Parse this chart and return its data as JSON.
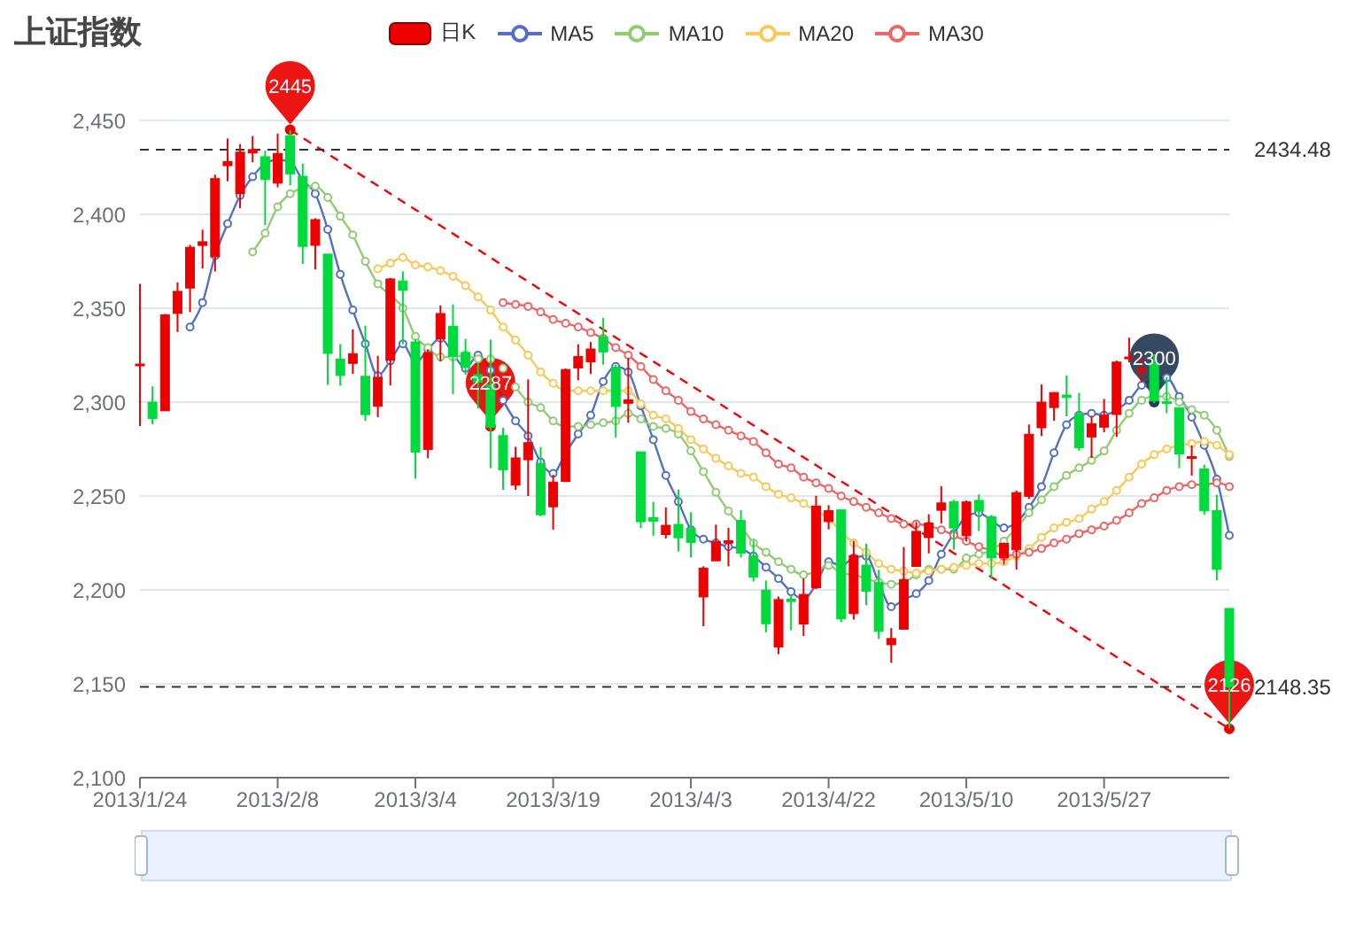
{
  "chart_data": {
    "type": "candlestick",
    "title": "上证指数",
    "categories": [
      "2013/1/24",
      null,
      null,
      null,
      null,
      null,
      null,
      null,
      null,
      null,
      null,
      "2013/2/8",
      null,
      null,
      null,
      null,
      null,
      null,
      null,
      null,
      null,
      null,
      "2013/3/4",
      null,
      null,
      null,
      null,
      null,
      null,
      null,
      null,
      null,
      null,
      "2013/3/19",
      null,
      null,
      null,
      null,
      null,
      null,
      null,
      null,
      null,
      null,
      "2013/4/3",
      null,
      null,
      null,
      null,
      null,
      null,
      null,
      null,
      null,
      null,
      "2013/4/22",
      null,
      null,
      null,
      null,
      null,
      null,
      null,
      null,
      null,
      null,
      "2013/5/10",
      null,
      null,
      null,
      null,
      null,
      null,
      null,
      null,
      null,
      null,
      "2013/5/27",
      null,
      null,
      null,
      null,
      null,
      null,
      null,
      null,
      null,
      null
    ],
    "series": [
      {
        "name": "日K",
        "type": "candlestick",
        "color": "#ec0000",
        "colors": [
          "#ec0000",
          "#00da3c",
          "#ec0000",
          "#ec0000",
          "#ec0000",
          "#ec0000",
          "#ec0000",
          "#ec0000",
          "#ec0000",
          "#ec0000",
          "#00da3c",
          "#ec0000",
          "#00da3c",
          "#00da3c",
          "#ec0000",
          "#00da3c",
          "#00da3c",
          "#ec0000",
          "#00da3c",
          "#ec0000",
          "#ec0000",
          "#00da3c",
          "#00da3c",
          "#ec0000",
          "#ec0000",
          "#00da3c",
          "#00da3c",
          "#00da3c",
          "#00da3c",
          "#00da3c",
          "#ec0000",
          "#ec0000",
          "#00da3c",
          "#ec0000",
          "#ec0000",
          "#ec0000",
          "#ec0000",
          "#00da3c",
          "#00da3c",
          "#ec0000",
          "#00da3c",
          "#00da3c",
          "#ec0000",
          "#00da3c",
          "#00da3c",
          "#ec0000",
          "#ec0000",
          "#ec0000",
          "#00da3c",
          "#00da3c",
          "#00da3c",
          "#ec0000",
          "#00da3c",
          "#ec0000",
          "#ec0000",
          "#ec0000",
          "#00da3c",
          "#ec0000",
          "#00da3c",
          "#00da3c",
          "#ec0000",
          "#ec0000",
          "#ec0000",
          "#ec0000",
          "#ec0000",
          "#00da3c",
          "#ec0000",
          "#00da3c",
          "#00da3c",
          "#ec0000",
          "#ec0000",
          "#ec0000",
          "#ec0000",
          "#ec0000",
          "#00da3c",
          "#00da3c",
          "#ec0000",
          "#ec0000",
          "#ec0000",
          "#ec0000",
          "#ec0000",
          "#00da3c",
          "#00da3c",
          "#00da3c",
          "#ec0000",
          "#00da3c",
          "#00da3c",
          "#00da3c"
        ],
        "ohlc": [
          [
            2320.26,
            2362.94,
            2287.3,
            2320.26
          ],
          [
            2300,
            2308.38,
            2288.26,
            2291.3
          ],
          [
            2295.35,
            2346.92,
            2295.35,
            2346.5
          ],
          [
            2347.22,
            2363.8,
            2337.35,
            2358.98
          ],
          [
            2360.75,
            2383.76,
            2347.89,
            2382.48
          ],
          [
            2383.43,
            2391.82,
            2371.23,
            2385.42
          ],
          [
            2377.41,
            2421.15,
            2369.57,
            2419.02
          ],
          [
            2425.92,
            2440.38,
            2417.58,
            2428.15
          ],
          [
            2411,
            2437.42,
            2403.3,
            2433.13
          ],
          [
            2432.68,
            2441.73,
            2427.7,
            2434.48
          ],
          [
            2430.69,
            2433.89,
            2394.22,
            2418.53
          ],
          [
            2416.62,
            2443.03,
            2414.4,
            2432.4
          ],
          [
            2441.91,
            2444.8,
            2415.43,
            2421.56
          ],
          [
            2420.26,
            2427.07,
            2373.53,
            2382.91
          ],
          [
            2383.49,
            2397.94,
            2370.61,
            2397.18
          ],
          [
            2378.82,
            2378.82,
            2309.17,
            2325.95
          ],
          [
            2322.94,
            2330.88,
            2308.76,
            2314.16
          ],
          [
            2320.62,
            2338.78,
            2315.01,
            2325.82
          ],
          [
            2313.74,
            2340.71,
            2289.89,
            2293.34
          ],
          [
            2297.77,
            2324.63,
            2292.03,
            2313.22
          ],
          [
            2322.32,
            2366.16,
            2308.92,
            2365.59
          ],
          [
            2364.54,
            2369.65,
            2330.86,
            2359.51
          ],
          [
            2332.08,
            2333.54,
            2259.25,
            2273.4
          ],
          [
            2274.81,
            2328.14,
            2270.1,
            2326.31
          ],
          [
            2333.61,
            2351.44,
            2321.6,
            2347.18
          ],
          [
            2340.44,
            2352.02,
            2304.27,
            2324.29
          ],
          [
            2326.42,
            2333.67,
            2314.59,
            2318.61
          ],
          [
            2314.68,
            2320.96,
            2296.58,
            2310.59
          ],
          [
            2309.16,
            2333.29,
            2264.83,
            2286.6
          ],
          [
            2282.17,
            2286.33,
            2253.25,
            2263.97
          ],
          [
            2255.77,
            2276.22,
            2253.31,
            2270.28
          ],
          [
            2269.31,
            2312.08,
            2250,
            2278.4
          ],
          [
            2267.29,
            2276.05,
            2239.21,
            2240.02
          ],
          [
            2244.26,
            2261.31,
            2232.02,
            2257.43
          ],
          [
            2257.74,
            2317.86,
            2257.42,
            2317.37
          ],
          [
            2318.21,
            2330.81,
            2311.6,
            2324.24
          ],
          [
            2321.4,
            2332,
            2314.97,
            2328.28
          ],
          [
            2334.74,
            2344.89,
            2319.91,
            2326.72
          ],
          [
            2318.58,
            2319.99,
            2281.12,
            2297.67
          ],
          [
            2299.38,
            2323.48,
            2289,
            2301.26
          ],
          [
            2273.55,
            2273.55,
            2232.91,
            2236.3
          ],
          [
            2238.49,
            2246.87,
            2228.81,
            2236.62
          ],
          [
            2229.46,
            2243.95,
            2227.31,
            2234.4
          ],
          [
            2234.9,
            2253.42,
            2220.44,
            2227.74
          ],
          [
            2232.69,
            2241.34,
            2217.25,
            2225.29
          ],
          [
            2196.24,
            2212.59,
            2180.67,
            2211.59
          ],
          [
            2215.47,
            2234.73,
            2215.47,
            2225.77
          ],
          [
            2224.93,
            2233.04,
            2212.56,
            2226.13
          ],
          [
            2236.98,
            2242.48,
            2217.26,
            2219.55
          ],
          [
            2218.09,
            2226.26,
            2204.44,
            2206.78
          ],
          [
            2199.91,
            2204.99,
            2177.39,
            2181.94
          ],
          [
            2169.63,
            2196.43,
            2165.78,
            2194.85
          ],
          [
            2195.03,
            2197.51,
            2178.47,
            2193.8
          ],
          [
            2181.82,
            2206.03,
            2175.44,
            2197.6
          ],
          [
            2201.12,
            2250.11,
            2200.58,
            2244.64
          ],
          [
            2236.4,
            2245.12,
            2232.26,
            2242.17
          ],
          [
            2242.62,
            2242.62,
            2182.81,
            2184.54
          ],
          [
            2187.35,
            2226.12,
            2184.11,
            2218.32
          ],
          [
            2213.19,
            2224.63,
            2191.85,
            2199.31
          ],
          [
            2203.89,
            2210.58,
            2173.86,
            2177.91
          ],
          [
            2170.78,
            2179.65,
            2161.14,
            2174.12
          ],
          [
            2179.05,
            2222.81,
            2179.05,
            2205.5
          ],
          [
            2212.5,
            2236.07,
            2212.5,
            2231.17
          ],
          [
            2227.86,
            2240.26,
            2219.44,
            2235.57
          ],
          [
            2242.39,
            2255.21,
            2235.42,
            2246.3
          ],
          [
            2246.96,
            2247.86,
            2221.38,
            2232.97
          ],
          [
            2228.82,
            2247.67,
            2225.81,
            2246.83
          ],
          [
            2247.68,
            2250.85,
            2231.36,
            2241.92
          ],
          [
            2238.9,
            2239.93,
            2205.87,
            2217.01
          ],
          [
            2217.09,
            2225.19,
            2213.58,
            2224.8
          ],
          [
            2221.34,
            2252.87,
            2210.77,
            2251.81
          ],
          [
            2249.81,
            2288.09,
            2248.41,
            2282.87
          ],
          [
            2286.33,
            2309.39,
            2281.9,
            2299.99
          ],
          [
            2297.11,
            2305.3,
            2290.12,
            2305.11
          ],
          [
            2303.75,
            2314.18,
            2292.43,
            2302.4
          ],
          [
            2293.81,
            2304.95,
            2274.1,
            2275.67
          ],
          [
            2281.45,
            2292.59,
            2270.25,
            2288.53
          ],
          [
            2286.66,
            2301.7,
            2283.94,
            2293.08
          ],
          [
            2293.4,
            2322.1,
            2281.47,
            2321.32
          ],
          [
            2323.54,
            2334.33,
            2321.17,
            2324.02
          ],
          [
            2316.25,
            2325.72,
            2310.49,
            2317.75
          ],
          [
            2320.74,
            2325.53,
            2299.37,
            2300.59
          ],
          [
            2300.21,
            2313.43,
            2294.11,
            2299.25
          ],
          [
            2297.1,
            2297.1,
            2264.76,
            2272.42
          ],
          [
            2270.71,
            2276.86,
            2260.87,
            2270.93
          ],
          [
            2264.43,
            2266.69,
            2240.07,
            2242.11
          ],
          [
            2242.26,
            2250.63,
            2205.07,
            2210.9
          ],
          [
            2190.1,
            2190.1,
            2126.22,
            2148.35
          ]
        ]
      },
      {
        "name": "MA5",
        "type": "line",
        "color": "#5470c6",
        "marker": "circle",
        "line_style": "solid",
        "values": [
          null,
          null,
          null,
          null,
          2340,
          2353,
          2378,
          2395,
          2410,
          2420,
          2427,
          2429,
          2428,
          2418,
          2411,
          2392,
          2368,
          2349,
          2331,
          2314,
          2322,
          2331,
          2321,
          2328,
          2334,
          2326,
          2318,
          2325,
          2317,
          2301,
          2290,
          2282,
          2268,
          2262,
          2273,
          2283,
          2293,
          2311,
          2319,
          2316,
          2298,
          2280,
          2261,
          2247,
          2232,
          2227,
          2225,
          2223,
          2222,
          2218,
          2212,
          2206,
          2199,
          2195,
          2203,
          2215,
          2213,
          2217,
          2218,
          2204,
          2191,
          2195,
          2198,
          2205,
          2219,
          2230,
          2239,
          2241,
          2237,
          2233,
          2236,
          2244,
          2255,
          2273,
          2288,
          2293,
          2294,
          2293,
          2296,
          2301,
          2309,
          null,
          2313,
          2303,
          2292,
          2277,
          2259,
          2229
        ]
      },
      {
        "name": "MA10",
        "type": "line",
        "color": "#91cc75",
        "marker": "circle",
        "line_style": "solid",
        "values": [
          null,
          null,
          null,
          null,
          null,
          null,
          null,
          null,
          null,
          2380,
          2390,
          2404,
          2411,
          2414,
          2415,
          2409,
          2399,
          2389,
          2375,
          2363,
          2357,
          2350,
          2335,
          2329,
          2324,
          2324,
          2325,
          2323,
          2323,
          2318,
          2308,
          2300,
          2297,
          2290,
          2287,
          2287,
          2288,
          2289,
          2290,
          2294,
          2291,
          2287,
          2286,
          2283,
          2274,
          2263,
          2252,
          2242,
          2234,
          2225,
          2220,
          2215,
          2211,
          2208,
          2210,
          2213,
          2209,
          2208,
          2206,
          2204,
          2203,
          2204,
          2208,
          2211,
          2211,
          2211,
          2217,
          2219,
          2221,
          2226,
          2233,
          2241,
          2248,
          2255,
          2261,
          2265,
          2269,
          2274,
          2285,
          2294,
          2301,
          2303,
          2303,
          2300,
          2296,
          2293,
          2285,
          2271
        ]
      },
      {
        "name": "MA20",
        "type": "line",
        "color": "#fac858",
        "marker": "circle",
        "line_style": "solid",
        "values": [
          null,
          null,
          null,
          null,
          null,
          null,
          null,
          null,
          null,
          null,
          null,
          null,
          null,
          null,
          null,
          null,
          null,
          null,
          null,
          2371,
          2374,
          2377,
          2373,
          2372,
          2370,
          2367,
          2362,
          2356,
          2349,
          2340,
          2333,
          2325,
          2316,
          2310,
          2306,
          2306,
          2306,
          2306,
          2306,
          2306,
          2299,
          2293,
          2291,
          2286,
          2280,
          2275,
          2270,
          2266,
          2262,
          2260,
          2255,
          2251,
          2249,
          2246,
          2242,
          2238,
          2231,
          2225,
          2220,
          2214,
          2211,
          2210,
          2209,
          2210,
          2211,
          2212,
          2213,
          2214,
          2214,
          2215,
          2218,
          2222,
          2228,
          2233,
          2236,
          2238,
          2243,
          2247,
          2253,
          2260,
          2267,
          2272,
          2275,
          2277,
          2278,
          2279,
          2277,
          2272
        ]
      },
      {
        "name": "MA30",
        "type": "line",
        "color": "#ee6666",
        "marker": "circle",
        "line_style": "solid",
        "values": [
          null,
          null,
          null,
          null,
          null,
          null,
          null,
          null,
          null,
          null,
          null,
          null,
          null,
          null,
          null,
          null,
          null,
          null,
          null,
          null,
          null,
          null,
          null,
          null,
          null,
          null,
          null,
          null,
          null,
          2353,
          2352,
          2351,
          2348,
          2344,
          2342,
          2340,
          2337,
          2334,
          2329,
          2325,
          2319,
          2312,
          2306,
          2301,
          2295,
          2291,
          2288,
          2285,
          2282,
          2279,
          2273,
          2267,
          2265,
          2260,
          2257,
          2254,
          2250,
          2247,
          2244,
          2241,
          2238,
          2235,
          2235,
          2234,
          2232,
          2229,
          2226,
          2223,
          2221,
          2218,
          2219,
          2220,
          2222,
          2225,
          2227,
          2230,
          2232,
          2234,
          2237,
          2241,
          2246,
          2249,
          2253,
          2255,
          2256,
          2256,
          2257,
          2255
        ]
      },
      {
        "type": "line",
        "color": "#ff0000",
        "line_style": "dashed",
        "values": [
          null,
          null,
          null,
          null,
          null,
          null,
          null,
          null,
          null,
          null,
          null,
          null,
          2445,
          null,
          null,
          null,
          null,
          null,
          null,
          null,
          null,
          null,
          null,
          null,
          null,
          null,
          null,
          null,
          null,
          null,
          null,
          null,
          null,
          null,
          null,
          null,
          null,
          null,
          null,
          null,
          null,
          null,
          null,
          null,
          null,
          null,
          null,
          null,
          null,
          null,
          null,
          null,
          null,
          null,
          null,
          null,
          null,
          null,
          null,
          null,
          null,
          null,
          null,
          null,
          null,
          null,
          null,
          null,
          null,
          null,
          null,
          null,
          null,
          null,
          null,
          null,
          null,
          null,
          null,
          null,
          null,
          null,
          null,
          null,
          null,
          null,
          null,
          2126
        ]
      },
      {
        "type": "scatter",
        "values": [
          null,
          null,
          null,
          null,
          null,
          null,
          null,
          null,
          null,
          null,
          null,
          null,
          2445,
          null,
          null,
          null,
          null,
          null,
          null,
          null,
          null,
          null,
          null,
          null,
          null,
          null,
          null,
          null,
          2287,
          null,
          null,
          null,
          null,
          null,
          null,
          null,
          null,
          null,
          null,
          null,
          null,
          null,
          null,
          null,
          null,
          null,
          null,
          null,
          null,
          null,
          null,
          null,
          null,
          null,
          null,
          null,
          null,
          null,
          null,
          null,
          null,
          null,
          null,
          null,
          null,
          null,
          null,
          null,
          null,
          null,
          null,
          null,
          null,
          null,
          null,
          null,
          null,
          null,
          null,
          null,
          null,
          2300,
          null,
          null,
          null,
          null,
          null,
          2126
        ],
        "value_labels": [
          null,
          null,
          null,
          null,
          null,
          null,
          null,
          null,
          null,
          null,
          null,
          null,
          "2445",
          null,
          null,
          null,
          null,
          null,
          null,
          null,
          null,
          null,
          null,
          null,
          null,
          null,
          null,
          null,
          "2287",
          null,
          null,
          null,
          null,
          null,
          null,
          null,
          null,
          null,
          null,
          null,
          null,
          null,
          null,
          null,
          null,
          null,
          null,
          null,
          null,
          null,
          null,
          null,
          null,
          null,
          null,
          null,
          null,
          null,
          null,
          null,
          null,
          null,
          null,
          null,
          null,
          null,
          null,
          null,
          null,
          null,
          null,
          null,
          null,
          null,
          null,
          null,
          null,
          null,
          null,
          null,
          null,
          "2300",
          null,
          null,
          null,
          null,
          null,
          "2126"
        ],
        "colors": [
          null,
          null,
          null,
          null,
          null,
          null,
          null,
          null,
          null,
          null,
          null,
          null,
          "#ec0000",
          null,
          null,
          null,
          null,
          null,
          null,
          null,
          null,
          null,
          null,
          null,
          null,
          null,
          null,
          null,
          "#ec0000",
          null,
          null,
          null,
          null,
          null,
          null,
          null,
          null,
          null,
          null,
          null,
          null,
          null,
          null,
          null,
          null,
          null,
          null,
          null,
          null,
          null,
          null,
          null,
          null,
          null,
          null,
          null,
          null,
          null,
          null,
          null,
          null,
          null,
          null,
          null,
          null,
          null,
          null,
          null,
          null,
          null,
          null,
          null,
          null,
          null,
          null,
          null,
          null,
          null,
          null,
          null,
          null,
          "#253a52",
          null,
          null,
          null,
          null,
          null,
          "#ec0000"
        ]
      }
    ],
    "ylim": [
      2100,
      2450
    ],
    "yticks": [
      {
        "value": 2100,
        "label": "2,100"
      },
      {
        "value": 2150,
        "label": "2,150"
      },
      {
        "value": 2200,
        "label": "2,200"
      },
      {
        "value": 2250,
        "label": "2,250"
      },
      {
        "value": 2300,
        "label": "2,300"
      },
      {
        "value": 2350,
        "label": "2,350"
      },
      {
        "value": 2400,
        "label": "2,400"
      },
      {
        "value": 2450,
        "label": "2,450"
      }
    ],
    "grid": "y",
    "legend": "top",
    "ref_lines": [
      {
        "axis": "y",
        "value": 2434.48,
        "label": "2434.48",
        "color": "#333333",
        "line_style": "dashed"
      },
      {
        "axis": "y",
        "value": 2148.35,
        "label": "2148.35",
        "color": "#333333",
        "line_style": "dashed"
      }
    ]
  }
}
